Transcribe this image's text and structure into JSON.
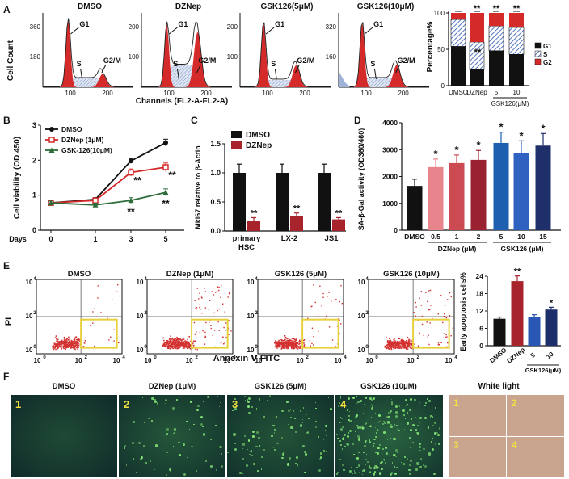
{
  "panel_letters": {
    "a": "A",
    "b": "B",
    "c": "C",
    "d": "D",
    "e": "E",
    "f": "F"
  },
  "colors": {
    "red": "#d42a2a",
    "dark_red": "#a8242c",
    "navy": "#1c2f6a",
    "blue": "#2a56b4",
    "green": "#2e6b3a",
    "flow_red": "#d33030",
    "yellow": "#e7d03a",
    "hatch": "#8fa6d6"
  },
  "panelA": {
    "hist_titles": [
      "DMSO",
      "DZNep",
      "GSK126(5μM)",
      "GSK126(10μM)"
    ],
    "y_axis_label": "Cell Count",
    "x_axis_label": "Channels (FL2-A-FL2-A)",
    "y_ticks": [
      [
        "360",
        "180"
      ],
      [
        "200",
        "100"
      ],
      [
        "200",
        "100"
      ],
      [
        "320",
        "160"
      ]
    ],
    "x_ticks": [
      "100",
      "200"
    ],
    "peak_labels": {
      "g1": "G1",
      "s": "S",
      "g2m": "G2/M"
    },
    "bar": {
      "ylabel": "Percentage%",
      "yticks": [
        "0",
        "50",
        "100"
      ],
      "categories": [
        "DMSO",
        "DZNep",
        "5",
        "10"
      ],
      "group_label": "GSK126(μM)",
      "legend": [
        "G1",
        "S",
        "G2"
      ],
      "G1": [
        54,
        22,
        48,
        43
      ],
      "S": [
        37,
        38,
        34,
        37
      ],
      "G2": [
        9,
        40,
        18,
        20
      ],
      "sig": [
        "",
        "**",
        "**",
        "**"
      ],
      "sig_inner": [
        "",
        "**",
        "",
        ""
      ]
    }
  },
  "chart_data": [
    {
      "type": "line",
      "title": "",
      "xlabel": "Days",
      "ylabel": "Cell viability (OD 450)",
      "x": [
        0,
        1,
        3,
        5
      ],
      "ylim": [
        0,
        3
      ],
      "yticks": [
        "0",
        "1",
        "2",
        "3"
      ],
      "xticks": [
        "0",
        "1",
        "3",
        "5"
      ],
      "series": [
        {
          "name": "DMSO",
          "values": [
            0.78,
            0.88,
            1.98,
            2.5
          ],
          "err": [
            0.05,
            0.05,
            0.06,
            0.1
          ],
          "sig": [
            "",
            "",
            "",
            ""
          ]
        },
        {
          "name": "DZNep (1μM)",
          "values": [
            0.78,
            0.85,
            1.65,
            1.8
          ],
          "err": [
            0.05,
            0.05,
            0.1,
            0.12
          ],
          "sig": [
            "",
            "",
            "**",
            "**"
          ]
        },
        {
          "name": "GSK-126(10μM)",
          "values": [
            0.78,
            0.72,
            0.85,
            1.08
          ],
          "err": [
            0.05,
            0.05,
            0.08,
            0.1
          ],
          "sig": [
            "",
            "",
            "**",
            "**"
          ]
        }
      ]
    },
    {
      "type": "bar",
      "title": "",
      "xlabel": "",
      "ylabel": "Mki67 relative to β-Actin",
      "categories": [
        "primary HSC",
        "LX-2",
        "JS1"
      ],
      "category_lines": [
        [
          "primary",
          "HSC"
        ],
        [
          "LX-2"
        ],
        [
          "JS1"
        ]
      ],
      "ylim": [
        0,
        1.5
      ],
      "yticks": [
        "0.0",
        "0.5",
        "1.0",
        "1.5"
      ],
      "series": [
        {
          "name": "DMSO",
          "values": [
            1.0,
            1.0,
            1.0
          ],
          "err": [
            0.15,
            0.15,
            0.15
          ]
        },
        {
          "name": "DZNep",
          "values": [
            0.18,
            0.25,
            0.2
          ],
          "err": [
            0.05,
            0.06,
            0.03
          ],
          "sig": [
            "**",
            "**",
            "**"
          ]
        }
      ]
    },
    {
      "type": "bar",
      "title": "",
      "xlabel": "",
      "ylabel": "SA-β-Gal activity (OD360/460)",
      "categories": [
        "DMSO",
        "0.5",
        "1",
        "2",
        "5",
        "10",
        "15"
      ],
      "groups": [
        {
          "label": "DZNep (μM)",
          "from": 1,
          "to": 3
        },
        {
          "label": "GSK126 (μM)",
          "from": 4,
          "to": 6
        }
      ],
      "ylim": [
        0,
        4000
      ],
      "yticks": [
        "0",
        "1000",
        "2000",
        "3000",
        "4000"
      ],
      "values": [
        1650,
        2350,
        2500,
        2620,
        3250,
        2880,
        3150
      ],
      "err": [
        250,
        300,
        300,
        350,
        400,
        450,
        450
      ],
      "sig": [
        "",
        "*",
        "*",
        "*",
        "*",
        "*",
        "*"
      ]
    },
    {
      "type": "bar",
      "title": "",
      "xlabel": "",
      "ylabel": "Early apoptosis cells%",
      "categories": [
        "DMSO",
        "DZNep",
        "5",
        "10"
      ],
      "group_label": "GSK126(μM)",
      "ylim": [
        0,
        24
      ],
      "yticks": [
        "0",
        "6",
        "12",
        "18",
        "24"
      ],
      "values": [
        9.3,
        22.3,
        10.0,
        12.5
      ],
      "err": [
        0.6,
        1.8,
        0.7,
        0.8
      ],
      "sig": [
        "",
        "**",
        "",
        "*"
      ]
    }
  ],
  "panelE": {
    "titles": [
      "DMSO",
      "DZNep (1μM)",
      "GSK126 (5μM)",
      "GSK126 (10μM)"
    ],
    "ylabel": "PI",
    "xlabel": "Annexin Ⅴ FITC",
    "ticks": {
      "e0": "10",
      "e2": "10",
      "e4": "10",
      "p0": "0",
      "p2": "2",
      "p4": "4"
    }
  },
  "panelF": {
    "titles": [
      "DMSO",
      "DZNep (1μM)",
      "GSK126 (5μM)",
      "GSK126 (10μM)"
    ],
    "numbers": [
      "1",
      "2",
      "3",
      "4"
    ],
    "white_light": "White light",
    "wl_numbers": [
      "1",
      "2",
      "3",
      "4"
    ]
  }
}
